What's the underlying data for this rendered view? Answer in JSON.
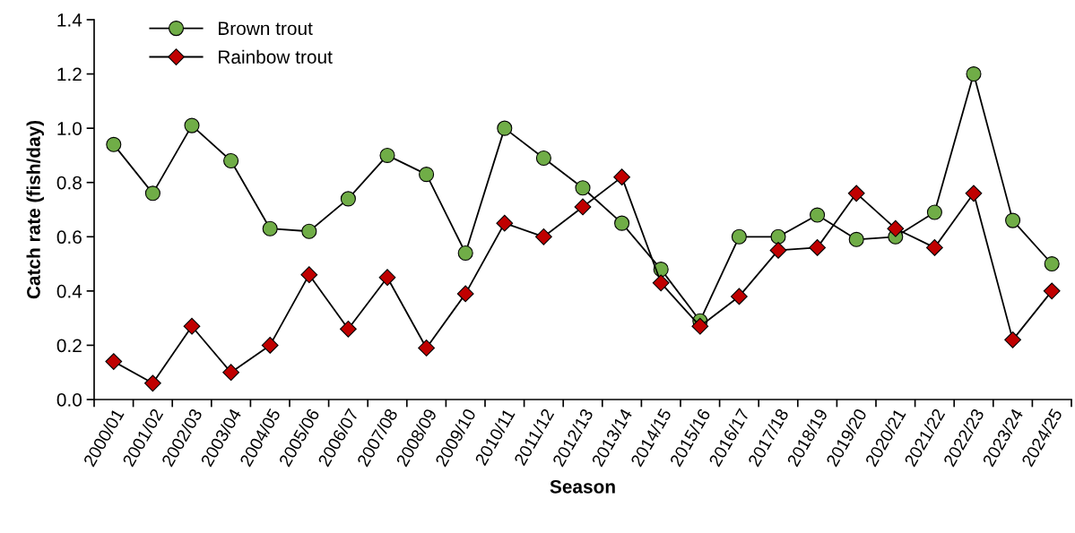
{
  "chart_data": {
    "type": "line",
    "xlabel": "Season",
    "ylabel": "Catch rate (fish/day)",
    "categories": [
      "2000/01",
      "2001/02",
      "2002/03",
      "2003/04",
      "2004/05",
      "2005/06",
      "2006/07",
      "2007/08",
      "2008/09",
      "2009/10",
      "2010/11",
      "2011/12",
      "2012/13",
      "2013/14",
      "2014/15",
      "2015/16",
      "2016/17",
      "2017/18",
      "2018/19",
      "2019/20",
      "2020/21",
      "2021/22",
      "2022/23",
      "2023/24",
      "2024/25"
    ],
    "series": [
      {
        "name": "Brown trout",
        "color": "#70ad47",
        "marker": "circle",
        "values": [
          0.94,
          0.76,
          1.01,
          0.88,
          0.63,
          0.62,
          0.74,
          0.9,
          0.83,
          0.54,
          1.0,
          0.89,
          0.78,
          0.65,
          0.48,
          0.29,
          0.6,
          0.6,
          0.68,
          0.59,
          0.6,
          0.69,
          1.2,
          0.66,
          0.5
        ]
      },
      {
        "name": "Rainbow trout",
        "color": "#c00000",
        "marker": "diamond",
        "values": [
          0.14,
          0.06,
          0.27,
          0.1,
          0.2,
          0.46,
          0.26,
          0.45,
          0.19,
          0.39,
          0.65,
          0.6,
          0.71,
          0.82,
          0.43,
          0.27,
          0.38,
          0.55,
          0.56,
          0.76,
          0.63,
          0.56,
          0.76,
          0.22,
          0.4
        ]
      }
    ],
    "ylim": [
      0,
      1.4
    ],
    "yticks": [
      {
        "value": 0,
        "label": "0.0"
      },
      {
        "value": 0.2,
        "label": "0.2"
      },
      {
        "value": 0.4,
        "label": "0.4"
      },
      {
        "value": 0.6,
        "label": "0.6"
      },
      {
        "value": 0.8,
        "label": "0.8"
      },
      {
        "value": 1.0,
        "label": "1.0"
      },
      {
        "value": 1.2,
        "label": "1.2"
      },
      {
        "value": 1.4,
        "label": "1.4"
      }
    ],
    "grid": false,
    "legend": "top left",
    "line_style": "solid"
  }
}
